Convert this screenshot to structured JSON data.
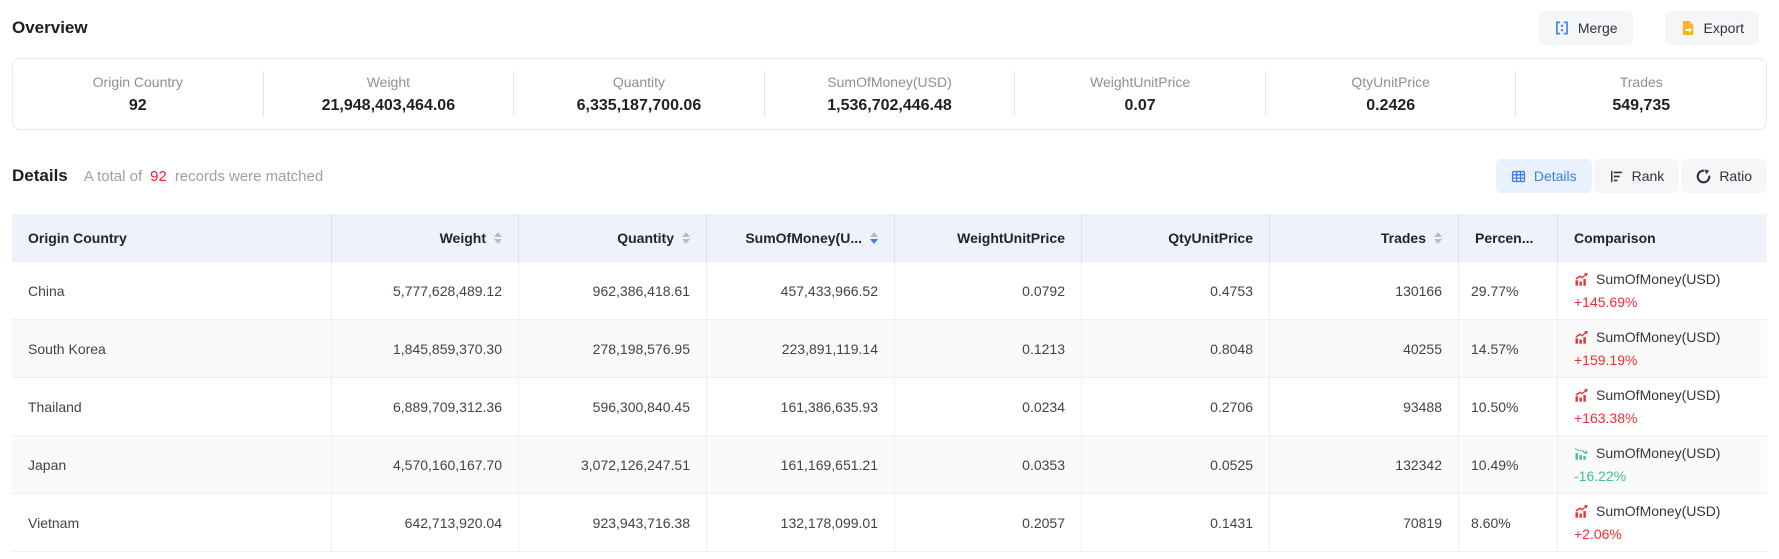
{
  "overview": {
    "title": "Overview",
    "merge_button": "Merge",
    "export_button": "Export",
    "stats": [
      {
        "label": "Origin Country",
        "value": "92"
      },
      {
        "label": "Weight",
        "value": "21,948,403,464.06"
      },
      {
        "label": "Quantity",
        "value": "6,335,187,700.06"
      },
      {
        "label": "SumOfMoney(USD)",
        "value": "1,536,702,446.48"
      },
      {
        "label": "WeightUnitPrice",
        "value": "0.07"
      },
      {
        "label": "QtyUnitPrice",
        "value": "0.2426"
      },
      {
        "label": "Trades",
        "value": "549,735"
      }
    ]
  },
  "details": {
    "title": "Details",
    "summary_prefix": "A total of",
    "record_count": "92",
    "summary_suffix": "records were matched",
    "view_tabs": [
      {
        "label": "Details",
        "icon": "table-icon",
        "active": true
      },
      {
        "label": "Rank",
        "icon": "rank-icon",
        "active": false
      },
      {
        "label": "Ratio",
        "icon": "ratio-icon",
        "active": false
      }
    ]
  },
  "table": {
    "columns": [
      {
        "label": "Origin Country",
        "align": "left",
        "sortable": false
      },
      {
        "label": "Weight",
        "align": "right",
        "sortable": true
      },
      {
        "label": "Quantity",
        "align": "right",
        "sortable": true
      },
      {
        "label": "SumOfMoney(U...",
        "align": "right",
        "sortable": true,
        "sorted": "desc"
      },
      {
        "label": "WeightUnitPrice",
        "align": "right",
        "sortable": false
      },
      {
        "label": "QtyUnitPrice",
        "align": "right",
        "sortable": false
      },
      {
        "label": "Trades",
        "align": "right",
        "sortable": true
      },
      {
        "label": "Percen...",
        "align": "left",
        "sortable": false
      },
      {
        "label": "Comparison",
        "align": "left",
        "sortable": false
      }
    ],
    "rows": [
      {
        "origin_country": "China",
        "weight": "5,777,628,489.12",
        "quantity": "962,386,418.61",
        "sum_of_money": "457,433,966.52",
        "weight_unit_price": "0.0792",
        "qty_unit_price": "0.4753",
        "trades": "130166",
        "percent": "29.77%",
        "comparison": {
          "metric": "SumOfMoney(USD)",
          "change": "+145.69%",
          "trend": "up"
        }
      },
      {
        "origin_country": "South Korea",
        "weight": "1,845,859,370.30",
        "quantity": "278,198,576.95",
        "sum_of_money": "223,891,119.14",
        "weight_unit_price": "0.1213",
        "qty_unit_price": "0.8048",
        "trades": "40255",
        "percent": "14.57%",
        "comparison": {
          "metric": "SumOfMoney(USD)",
          "change": "+159.19%",
          "trend": "up"
        }
      },
      {
        "origin_country": "Thailand",
        "weight": "6,889,709,312.36",
        "quantity": "596,300,840.45",
        "sum_of_money": "161,386,635.93",
        "weight_unit_price": "0.0234",
        "qty_unit_price": "0.2706",
        "trades": "93488",
        "percent": "10.50%",
        "comparison": {
          "metric": "SumOfMoney(USD)",
          "change": "+163.38%",
          "trend": "up"
        }
      },
      {
        "origin_country": "Japan",
        "weight": "4,570,160,167.70",
        "quantity": "3,072,126,247.51",
        "sum_of_money": "161,169,651.21",
        "weight_unit_price": "0.0353",
        "qty_unit_price": "0.0525",
        "trades": "132342",
        "percent": "10.49%",
        "comparison": {
          "metric": "SumOfMoney(USD)",
          "change": "-16.22%",
          "trend": "down"
        }
      },
      {
        "origin_country": "Vietnam",
        "weight": "642,713,920.04",
        "quantity": "923,943,716.38",
        "sum_of_money": "132,178,099.01",
        "weight_unit_price": "0.2057",
        "qty_unit_price": "0.1431",
        "trades": "70819",
        "percent": "8.60%",
        "comparison": {
          "metric": "SumOfMoney(USD)",
          "change": "+2.06%",
          "trend": "up"
        }
      }
    ]
  },
  "colors": {
    "accent_blue": "#3d7fe8",
    "merge_icon_blue": "#4a8cf7",
    "export_icon_orange": "#f7b52c",
    "increase_red": "#f0302f",
    "decrease_green": "#3fc28f",
    "record_count_red": "#f5222d",
    "table_header_bg": "#edf2fb",
    "active_tab_bg": "#e8f1fd",
    "button_bg": "#f5f6f8",
    "striped_row_bg": "#fafafa"
  }
}
